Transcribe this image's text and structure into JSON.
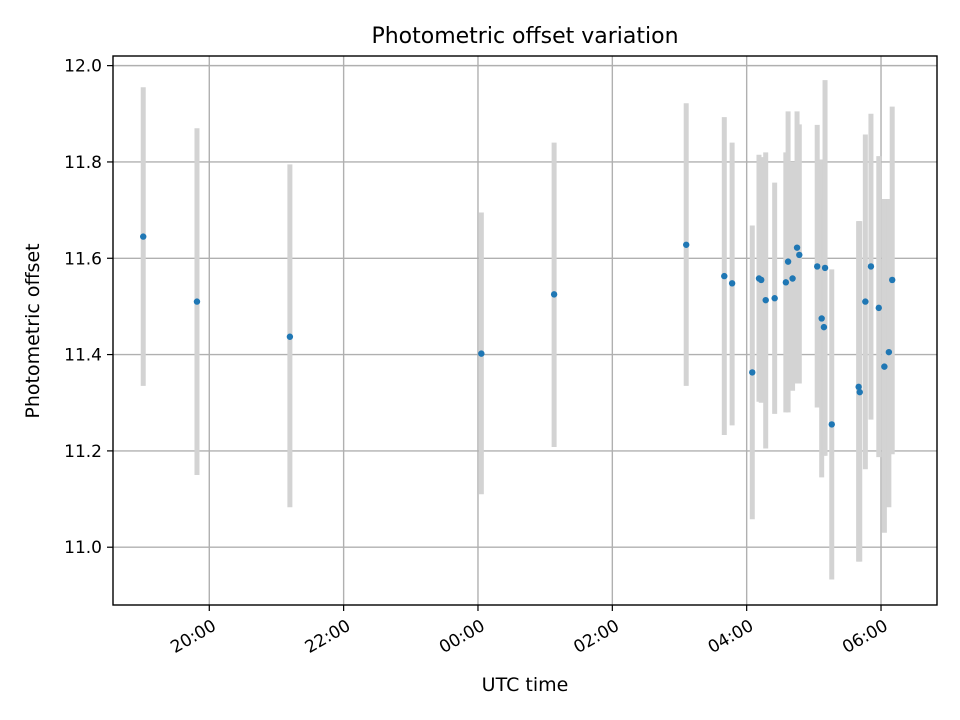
{
  "chart_data": {
    "type": "scatter",
    "title": "Photometric offset variation",
    "xlabel": "UTC time",
    "ylabel": "Photometric offset",
    "x_axis_kind": "time",
    "x_tick_format": "HH:MM",
    "xlim": [
      "18:34",
      "06:50"
    ],
    "ylim": [
      10.88,
      12.02
    ],
    "x_ticks": [
      "20:00",
      "22:00",
      "00:00",
      "02:00",
      "04:00",
      "06:00"
    ],
    "y_ticks": [
      "11.0",
      "11.2",
      "11.4",
      "11.6",
      "11.8",
      "12.0"
    ],
    "grid": true,
    "point_color": "#1f77b4",
    "errorbar_color": "#d3d3d3",
    "points": [
      {
        "t": "19:01",
        "y": 11.645,
        "lo": 11.335,
        "hi": 11.955
      },
      {
        "t": "19:49",
        "y": 11.51,
        "lo": 11.15,
        "hi": 11.87
      },
      {
        "t": "21:12",
        "y": 11.437,
        "lo": 11.083,
        "hi": 11.795
      },
      {
        "t": "00:03",
        "y": 11.402,
        "lo": 11.11,
        "hi": 11.695
      },
      {
        "t": "01:08",
        "y": 11.525,
        "lo": 11.208,
        "hi": 11.84
      },
      {
        "t": "03:06",
        "y": 11.628,
        "lo": 11.335,
        "hi": 11.922
      },
      {
        "t": "03:40",
        "y": 11.563,
        "lo": 11.233,
        "hi": 11.893
      },
      {
        "t": "03:47",
        "y": 11.548,
        "lo": 11.253,
        "hi": 11.84
      },
      {
        "t": "04:05",
        "y": 11.363,
        "lo": 11.058,
        "hi": 11.668
      },
      {
        "t": "04:11",
        "y": 11.558,
        "lo": 11.302,
        "hi": 11.815
      },
      {
        "t": "04:13",
        "y": 11.555,
        "lo": 11.3,
        "hi": 11.81
      },
      {
        "t": "04:17",
        "y": 11.513,
        "lo": 11.205,
        "hi": 11.82
      },
      {
        "t": "04:25",
        "y": 11.517,
        "lo": 11.277,
        "hi": 11.757
      },
      {
        "t": "04:35",
        "y": 11.55,
        "lo": 11.28,
        "hi": 11.82
      },
      {
        "t": "04:37",
        "y": 11.593,
        "lo": 11.28,
        "hi": 11.905
      },
      {
        "t": "04:41",
        "y": 11.558,
        "lo": 11.325,
        "hi": 11.8
      },
      {
        "t": "04:45",
        "y": 11.622,
        "lo": 11.34,
        "hi": 11.905
      },
      {
        "t": "04:47",
        "y": 11.607,
        "lo": 11.34,
        "hi": 11.878
      },
      {
        "t": "05:03",
        "y": 11.583,
        "lo": 11.29,
        "hi": 11.877
      },
      {
        "t": "05:07",
        "y": 11.475,
        "lo": 11.145,
        "hi": 11.805
      },
      {
        "t": "05:09",
        "y": 11.457,
        "lo": 11.19,
        "hi": 11.723
      },
      {
        "t": "05:10",
        "y": 11.58,
        "lo": 11.19,
        "hi": 11.97
      },
      {
        "t": "05:16",
        "y": 11.255,
        "lo": 10.933,
        "hi": 11.577
      },
      {
        "t": "05:40",
        "y": 11.333,
        "lo": 10.97,
        "hi": 11.677
      },
      {
        "t": "05:41",
        "y": 11.322,
        "lo": 10.97,
        "hi": 11.677
      },
      {
        "t": "05:46",
        "y": 11.51,
        "lo": 11.162,
        "hi": 11.857
      },
      {
        "t": "05:51",
        "y": 11.583,
        "lo": 11.265,
        "hi": 11.9
      },
      {
        "t": "05:58",
        "y": 11.497,
        "lo": 11.187,
        "hi": 11.812
      },
      {
        "t": "06:03",
        "y": 11.375,
        "lo": 11.03,
        "hi": 11.723
      },
      {
        "t": "06:07",
        "y": 11.405,
        "lo": 11.083,
        "hi": 11.723
      },
      {
        "t": "06:10",
        "y": 11.555,
        "lo": 11.193,
        "hi": 11.915
      }
    ]
  }
}
